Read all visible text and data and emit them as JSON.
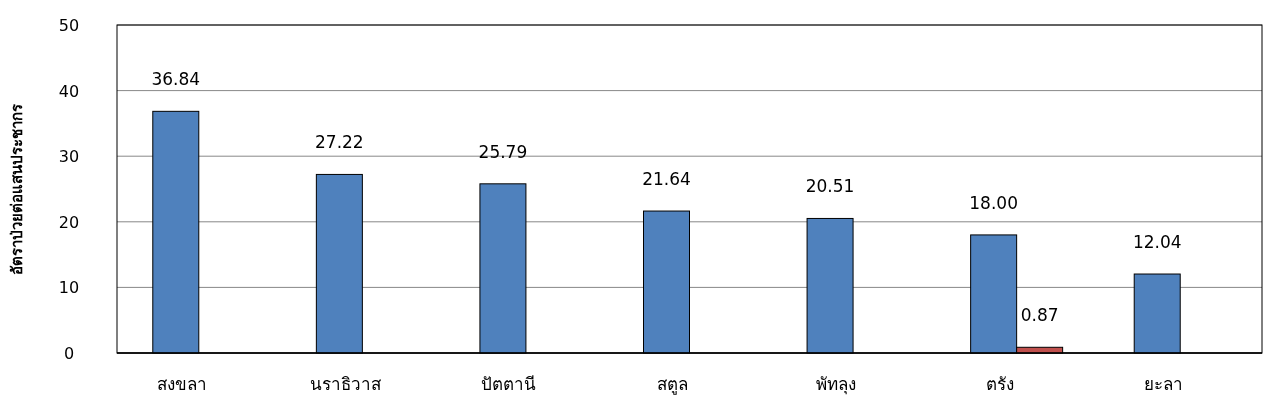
{
  "chart_data": {
    "type": "bar",
    "ylabel": "อัตราป่วยต่อแสนประชากร",
    "categories": [
      "สงขลา",
      "นราธิวาส",
      "ปัตตานี",
      "สตูล",
      "พัทลุง",
      "ตรัง",
      "ยะลา"
    ],
    "series": [
      {
        "color": "#4f81bd",
        "values": [
          36.84,
          27.22,
          25.79,
          21.64,
          20.51,
          18.0,
          12.04
        ],
        "value_labels": [
          "36.84",
          "27.22",
          "25.79",
          "21.64",
          "20.51",
          "18.00",
          "12.04"
        ]
      },
      {
        "color": "#c0504d",
        "values": [
          null,
          null,
          null,
          null,
          null,
          0.87,
          null
        ],
        "value_labels": [
          null,
          null,
          null,
          null,
          null,
          "0.87",
          null
        ]
      }
    ],
    "ylim": [
      0,
      50
    ],
    "yticks": [
      0,
      10,
      20,
      30,
      40,
      50
    ],
    "grid": "y"
  }
}
